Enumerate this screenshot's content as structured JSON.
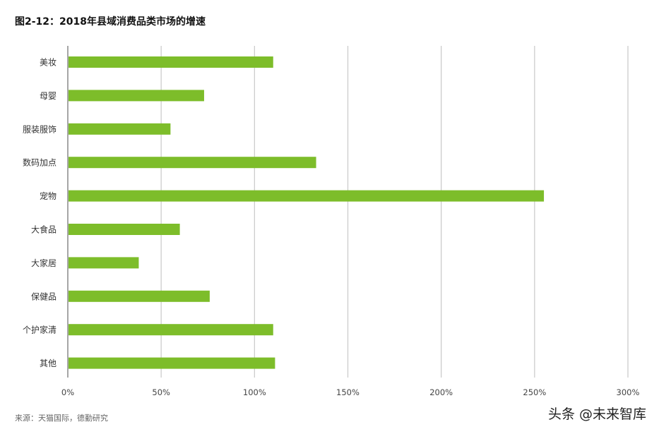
{
  "title": "图2-12：2018年县域消费品类市场的增速",
  "source": "来源：天猫国际，德勤研究",
  "watermark": "头条 @未来智库",
  "colors": {
    "bar": "#7dbd2a",
    "grid": "#c8c8c8",
    "axis": "#888888"
  },
  "chart_data": {
    "type": "bar",
    "orientation": "horizontal",
    "categories": [
      "美妆",
      "母婴",
      "服装服饰",
      "数码加点",
      "宠物",
      "大食品",
      "大家居",
      "保健品",
      "个护家清",
      "其他"
    ],
    "values": [
      110,
      73,
      55,
      133,
      255,
      60,
      38,
      76,
      110,
      111
    ],
    "unit": "%",
    "xlim": [
      0,
      300
    ],
    "xticks": [
      0,
      50,
      100,
      150,
      200,
      250,
      300
    ],
    "xtick_labels": [
      "0%",
      "50%",
      "100%",
      "150%",
      "200%",
      "250%",
      "300%"
    ],
    "grid": true,
    "legend": "none"
  }
}
